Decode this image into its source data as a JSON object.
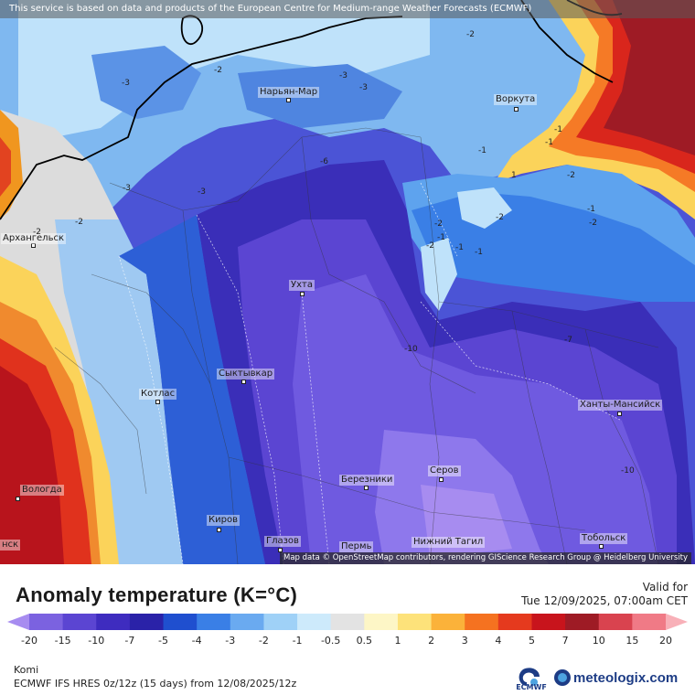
{
  "banner": "This service is based on data and products of the European Centre for Medium-range Weather Forecasts (ECMWF)",
  "attribution": "Map data © OpenStreetMap contributors, rendering GIScience Research Group @ Heidelberg University",
  "title": "Anomaly temperature (K=°C)",
  "valid_label": "Valid for",
  "valid_date": "Tue 12/09/2025, 07:00am CET",
  "region": "Komi",
  "model_info": "ECMWF IFS HRES 0z/12z (15 days) from  12/08/2025/12z",
  "ecmwf_label": "ECMWF",
  "brand": "meteologix.com",
  "legend": {
    "ticks": [
      "-20",
      "-15",
      "-10",
      "-7",
      "-5",
      "-4",
      "-3",
      "-2",
      "-1",
      "-0.5",
      "0.5",
      "1",
      "2",
      "3",
      "4",
      "5",
      "7",
      "10",
      "15",
      "20"
    ],
    "colors": [
      "#a78cf0",
      "#7b62e0",
      "#5b45d2",
      "#3e2cbf",
      "#2a22a8",
      "#1f4fcf",
      "#3a7fe6",
      "#6aaaf0",
      "#9fd1f7",
      "#cdeafb",
      "#e3e3e3",
      "#fdf6c6",
      "#fde27a",
      "#fbb23a",
      "#f57220",
      "#e53a1e",
      "#c8141c",
      "#9e1b25",
      "#d9434f",
      "#f07a86",
      "#f8b0b8"
    ]
  },
  "cities": [
    {
      "name": "Нарьян-Мар"
    },
    {
      "name": "Воркута"
    },
    {
      "name": "Архангельск"
    },
    {
      "name": "Ухта"
    },
    {
      "name": "Сыктывкар"
    },
    {
      "name": "Котлас"
    },
    {
      "name": "Ханты-Мансийск"
    },
    {
      "name": "Вологда"
    },
    {
      "name": "Березники"
    },
    {
      "name": "Серов"
    },
    {
      "name": "Киров"
    },
    {
      "name": "Глазов"
    },
    {
      "name": "Пермь"
    },
    {
      "name": "Нижний Тагил"
    },
    {
      "name": "Тобольск"
    },
    {
      "name": "нск"
    }
  ],
  "contour_labels": [
    "-2",
    "-2",
    "-3",
    "-3",
    "-3",
    "-3",
    "-2",
    "-2",
    "-3",
    "-6",
    "-1",
    "-1",
    "-1",
    "-2",
    "-1",
    "-2",
    "-1",
    "-1",
    "1",
    "-2",
    "-2",
    "-1",
    "-2",
    "-10",
    "-7",
    "-10"
  ]
}
